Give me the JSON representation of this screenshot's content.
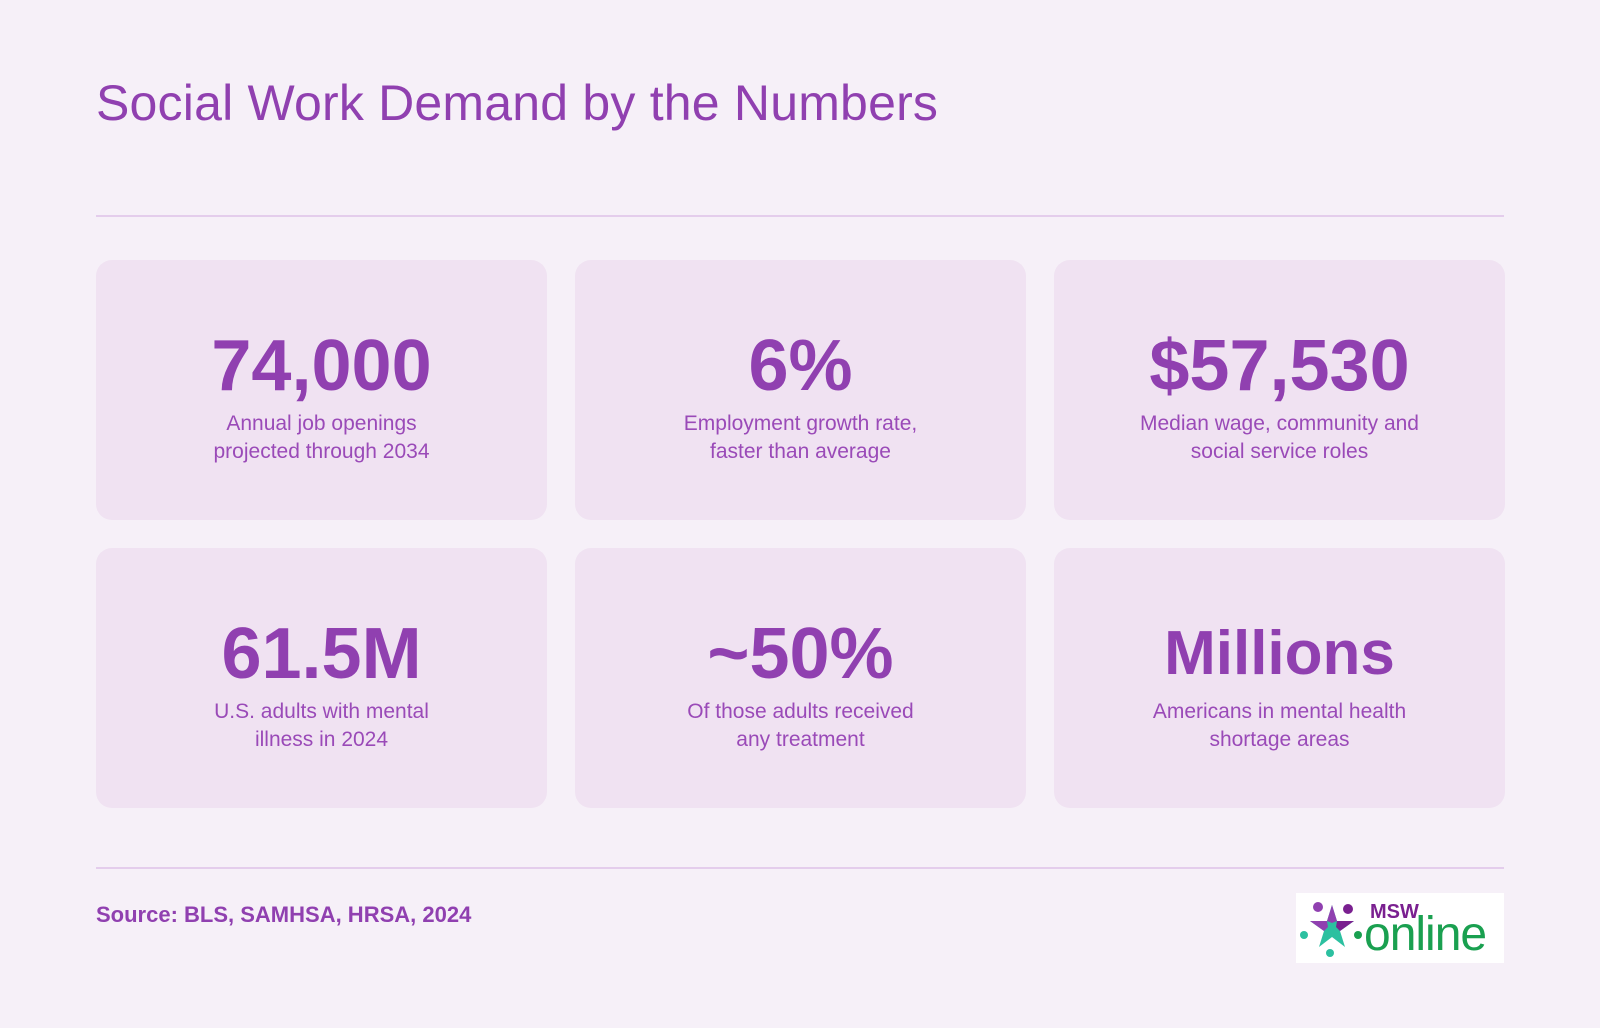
{
  "header": {
    "title": "Social Work Demand by the Numbers"
  },
  "stats": [
    {
      "value": "74,000",
      "line1": "Annual job openings",
      "line2": "projected through 2034"
    },
    {
      "value": "6%",
      "line1": "Employment growth rate,",
      "line2": "faster than average"
    },
    {
      "value": "$57,530",
      "line1": "Median wage, community and",
      "line2": "social service roles"
    },
    {
      "value": "61.5M",
      "line1": "U.S. adults with mental",
      "line2": "illness in 2024"
    },
    {
      "value": "~50%",
      "line1": "Of those adults received",
      "line2": "any treatment"
    },
    {
      "value": "Millions",
      "line1": "Americans in mental health",
      "line2": "shortage areas"
    }
  ],
  "footer": {
    "source": "Source: BLS, SAMHSA, HRSA, 2024",
    "logo": {
      "top_text": "MSW",
      "main_text": "online",
      "icon": "star-people-icon"
    }
  },
  "colors": {
    "background": "#f6f0f8",
    "card": "#f0e2f2",
    "accent": "#9040b0",
    "logo_purple": "#7a2090",
    "logo_green": "#1aa050",
    "logo_teal": "#2cc0a0"
  }
}
